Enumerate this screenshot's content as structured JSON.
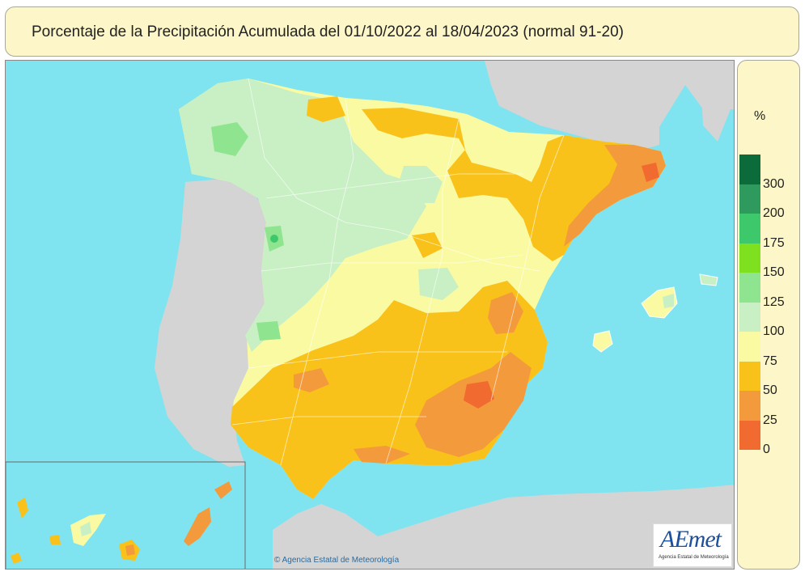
{
  "title": "Porcentaje de la Precipitación Acumulada del 01/10/2022 al 18/04/2023 (normal 91-20)",
  "legend": {
    "unit": "%",
    "classes": [
      {
        "label": "300",
        "color": "#0b6b3a"
      },
      {
        "label": "200",
        "color": "#2f9a5d"
      },
      {
        "label": "175",
        "color": "#3dc96b"
      },
      {
        "label": "150",
        "color": "#7ee01e"
      },
      {
        "label": "125",
        "color": "#8fe48f"
      },
      {
        "label": "100",
        "color": "#c9f0c4"
      },
      {
        "label": "75",
        "color": "#fafaa2"
      },
      {
        "label": "50",
        "color": "#f9c21a"
      },
      {
        "label": "25",
        "color": "#f39a3c"
      },
      {
        "label": "0",
        "color": "#f16a30"
      }
    ]
  },
  "colors": {
    "sea": "#7fe4f0",
    "land_other": "#d4d4d4",
    "wet_110": "#c9f0c4",
    "wet_130": "#8fe48f",
    "normal_85": "#fafaa2",
    "dry_55": "#f9c21a",
    "dry_40": "#f39a3c",
    "dry_20": "#f16a30"
  },
  "copyright": "Agencia Estatal de Meteorología",
  "logo": {
    "mark": "AEmet",
    "subtitle": "Agencia Estatal de Meteorología"
  }
}
